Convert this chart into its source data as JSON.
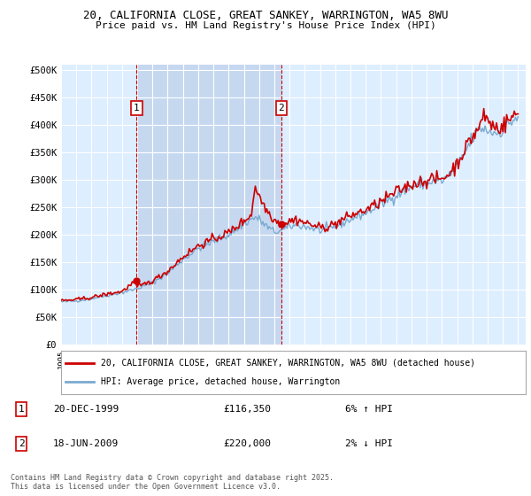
{
  "title_line1": "20, CALIFORNIA CLOSE, GREAT SANKEY, WARRINGTON, WA5 8WU",
  "title_line2": "Price paid vs. HM Land Registry's House Price Index (HPI)",
  "ylim": [
    0,
    510000
  ],
  "yticks": [
    0,
    50000,
    100000,
    150000,
    200000,
    250000,
    300000,
    350000,
    400000,
    450000,
    500000
  ],
  "ytick_labels": [
    "£0",
    "£50K",
    "£100K",
    "£150K",
    "£200K",
    "£250K",
    "£300K",
    "£350K",
    "£400K",
    "£450K",
    "£500K"
  ],
  "background_color": "#ffffff",
  "plot_bg_color": "#ddeeff",
  "shade_color": "#c5d8f0",
  "grid_color": "#ffffff",
  "transaction1_price": 116350,
  "transaction1_date": "20-DEC-1999",
  "transaction1_x": 1999.96,
  "transaction2_price": 220000,
  "transaction2_date": "18-JUN-2009",
  "transaction2_x": 2009.46,
  "line_color_property": "#cc0000",
  "line_color_hpi": "#7aaad0",
  "legend_property": "20, CALIFORNIA CLOSE, GREAT SANKEY, WARRINGTON, WA5 8WU (detached house)",
  "legend_hpi": "HPI: Average price, detached house, Warrington",
  "footer": "Contains HM Land Registry data © Crown copyright and database right 2025.\nThis data is licensed under the Open Government Licence v3.0.",
  "annot_border_color": "#cc0000",
  "xlim_start": 1995.0,
  "xlim_end": 2025.5
}
